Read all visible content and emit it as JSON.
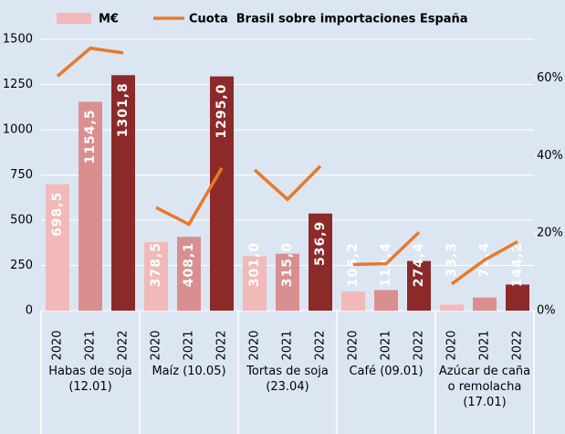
{
  "chart_data": {
    "type": "bar",
    "categories": [
      "2020",
      "2021",
      "2022",
      "2020",
      "2021",
      "2022",
      "2020",
      "2021",
      "2022",
      "2020",
      "2021",
      "2022",
      "2020",
      "2021",
      "2022"
    ],
    "groups": [
      "Habas de soja (12.01)",
      "Maíz (10.05)",
      "Tortas de soja (23.04)",
      "Café (09.01)",
      "Azúcar de caña o remolacha (17.01)"
    ],
    "series": [
      {
        "name": "M€",
        "type": "bar",
        "colors": [
          "#f2b9b9",
          "#d98f8f",
          "#8c2a2a"
        ],
        "values": [
          698.5,
          1154.5,
          1301.8,
          378.5,
          408.1,
          1295.0,
          301.0,
          315.0,
          536.9,
          105.2,
          113.4,
          274.4,
          33.3,
          72.4,
          144.2
        ],
        "value_labels": [
          "698,5",
          "1154,5",
          "1301,8",
          "378,5",
          "408,1",
          "1295,0",
          "301,0",
          "315,0",
          "536,9",
          "105,2",
          "113,4",
          "274,4",
          "33,3",
          "72,4",
          "144,2"
        ]
      },
      {
        "name": "Cuota  Brasil sobre importaciones España",
        "type": "line",
        "color": "#e8792a",
        "axis": "y2",
        "values": [
          60.5,
          67.7,
          66.5,
          26.6,
          22.3,
          36.8,
          36.3,
          28.7,
          37.3,
          11.9,
          12.1,
          20.2,
          6.9,
          13.1,
          17.8
        ]
      }
    ],
    "ylim": [
      0,
      1500
    ],
    "yticks": [
      0,
      250,
      500,
      750,
      1000,
      1250,
      1500
    ],
    "y2lim": [
      0,
      70
    ],
    "y2ticks": [
      {
        "value": 0,
        "label": "0%"
      },
      {
        "value": 20,
        "label": "20%"
      },
      {
        "value": 40,
        "label": "40%"
      },
      {
        "value": 60,
        "label": "60%"
      }
    ],
    "grid": true
  }
}
